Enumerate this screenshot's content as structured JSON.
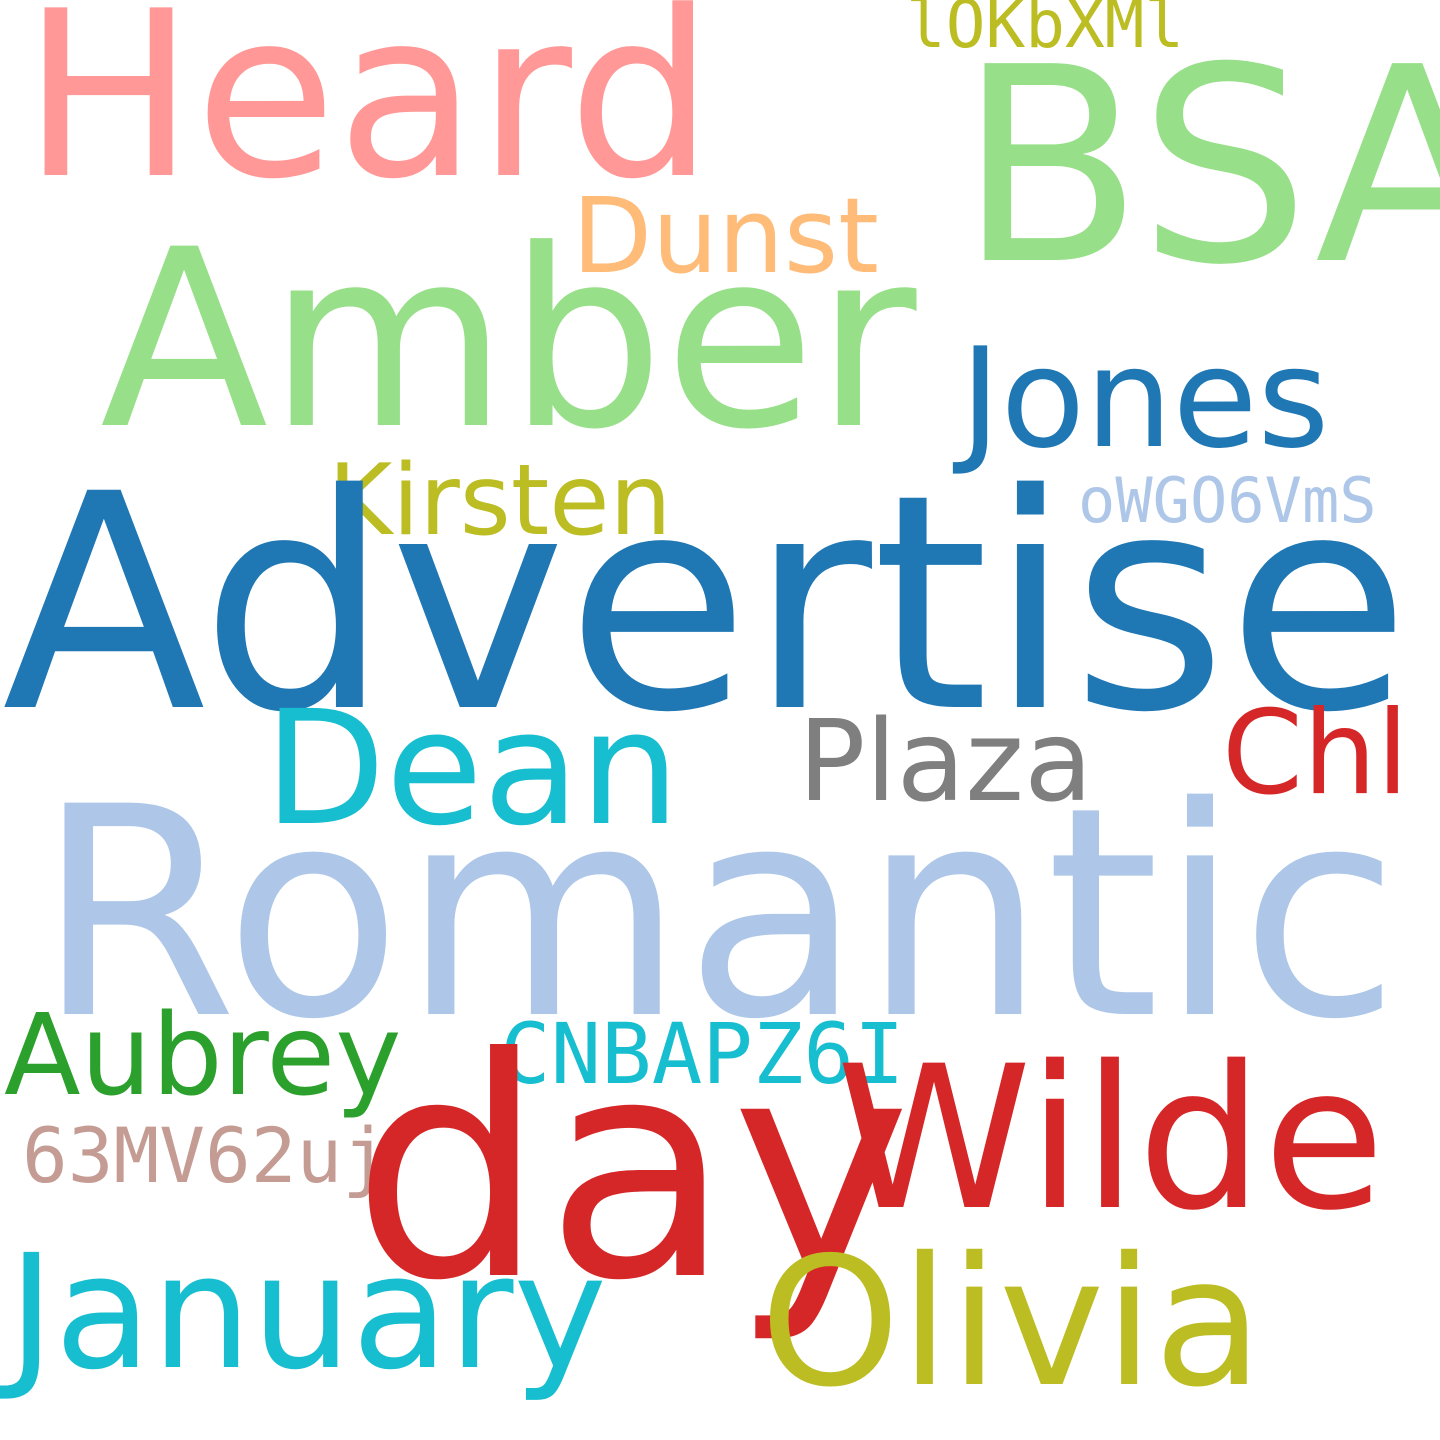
{
  "words": {
    "heard": {
      "text": "Heard",
      "color": "#ff9896"
    },
    "bsa": {
      "text": "BSA",
      "color": "#98df8a"
    },
    "lokbxml": {
      "text": "lOKbXMl",
      "color": "#bcbd22"
    },
    "dunst": {
      "text": "Dunst",
      "color": "#ffbb78"
    },
    "amber": {
      "text": "Amber",
      "color": "#98df8a"
    },
    "jones": {
      "text": "Jones",
      "color": "#1f77b4"
    },
    "kirsten": {
      "text": "Kirsten",
      "color": "#bcbd22"
    },
    "owgo6vms": {
      "text": "oWGO6VmS",
      "color": "#aec7e8"
    },
    "advertise": {
      "text": "Advertise",
      "color": "#1f77b4"
    },
    "dean": {
      "text": "Dean",
      "color": "#17becf"
    },
    "plaza": {
      "text": "Plaza",
      "color": "#7f7f7f"
    },
    "chl": {
      "text": "Chl",
      "color": "#d62728"
    },
    "romantic": {
      "text": "Romantic",
      "color": "#aec7e8"
    },
    "aubrey": {
      "text": "Aubrey",
      "color": "#2ca02c"
    },
    "cnbapz6i": {
      "text": "CNBAPZ6I",
      "color": "#17becf"
    },
    "wilde": {
      "text": "Wilde",
      "color": "#d62728"
    },
    "63mv62uj": {
      "text": "63MV62uj",
      "color": "#c49c94"
    },
    "day": {
      "text": "day",
      "color": "#d62728"
    },
    "january": {
      "text": "January",
      "color": "#17becf"
    },
    "olivia": {
      "text": "Olivia",
      "color": "#bcbd22"
    }
  }
}
